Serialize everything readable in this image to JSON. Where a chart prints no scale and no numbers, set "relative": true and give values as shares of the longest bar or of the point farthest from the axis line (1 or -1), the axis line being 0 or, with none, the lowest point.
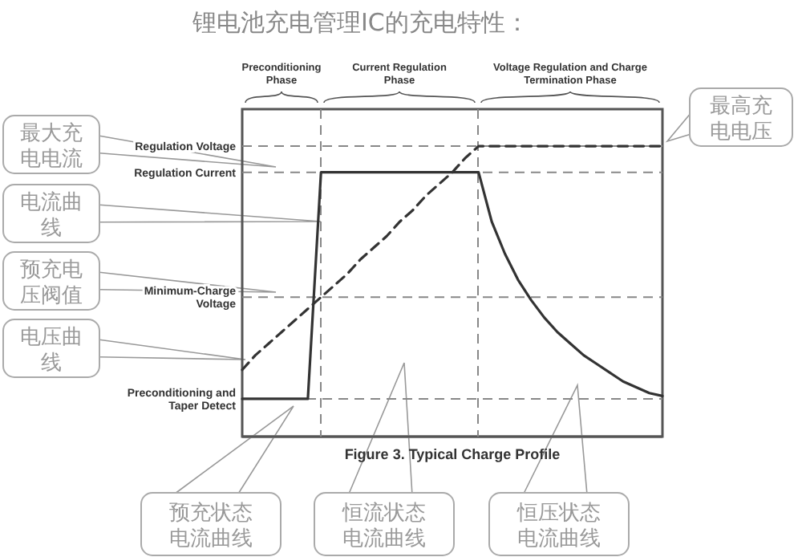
{
  "chart_data": {
    "type": "line",
    "relative": true,
    "title": "锂电池充电管理IC的充电特性：",
    "categories": [
      null,
      null,
      null,
      null,
      null,
      null,
      null,
      null,
      null,
      null,
      null,
      null,
      null,
      null,
      null,
      null,
      null,
      null,
      null,
      null,
      null,
      null,
      null,
      null,
      null,
      null,
      null,
      null,
      null,
      null,
      null,
      null,
      null
    ],
    "series": [
      {
        "color": "#333333",
        "line_style": "solid",
        "values": [
          0.13,
          0.13,
          0.13,
          0.13,
          0.13,
          0.13,
          0.91,
          0.91,
          0.91,
          0.91,
          0.91,
          0.91,
          0.91,
          0.91,
          0.91,
          0.91,
          0.91,
          0.91,
          0.91,
          0.74,
          0.63,
          0.54,
          0.47,
          0.41,
          0.36,
          0.32,
          0.28,
          0.25,
          0.22,
          0.19,
          0.17,
          0.15,
          0.14
        ]
      },
      {
        "color": "#333333",
        "line_style": "dashed",
        "values": [
          0.23,
          0.28,
          0.32,
          0.36,
          0.4,
          0.44,
          0.48,
          0.52,
          0.56,
          0.61,
          0.65,
          0.69,
          0.74,
          0.78,
          0.83,
          0.87,
          0.91,
          0.96,
          1.0,
          1.0,
          1.0,
          1.0,
          1.0,
          1.0,
          1.0,
          1.0,
          1.0,
          1.0,
          1.0,
          1.0,
          1.0,
          1.0,
          1.0
        ]
      }
    ],
    "ref_lines": [
      {
        "axis": "y",
        "value": 0.91,
        "label": "Regulation Current",
        "color": "#888888",
        "line_style": "dashed"
      },
      {
        "axis": "y",
        "value": 0.48,
        "label": "Minimum-Charge Voltage",
        "color": "#888888",
        "line_style": "dashed"
      },
      {
        "axis": "y",
        "value": 0.13,
        "label": "Preconditioning and Taper Detect",
        "color": "#888888",
        "line_style": "dashed"
      }
    ],
    "annotations": [
      "Figure 3. Typical Charge Profile",
      "Preconditioning Phase",
      "Current Regulation Phase",
      "Voltage Regulation and Charge Termination Phase",
      "最大充电电流",
      "电流曲线",
      "预充电压阀值",
      "电压曲线",
      "最高充电电压",
      "预充状态电流曲线",
      "恒流状态电流曲线",
      "恒压状态电流曲线",
      "Regulation Voltage"
    ]
  }
}
